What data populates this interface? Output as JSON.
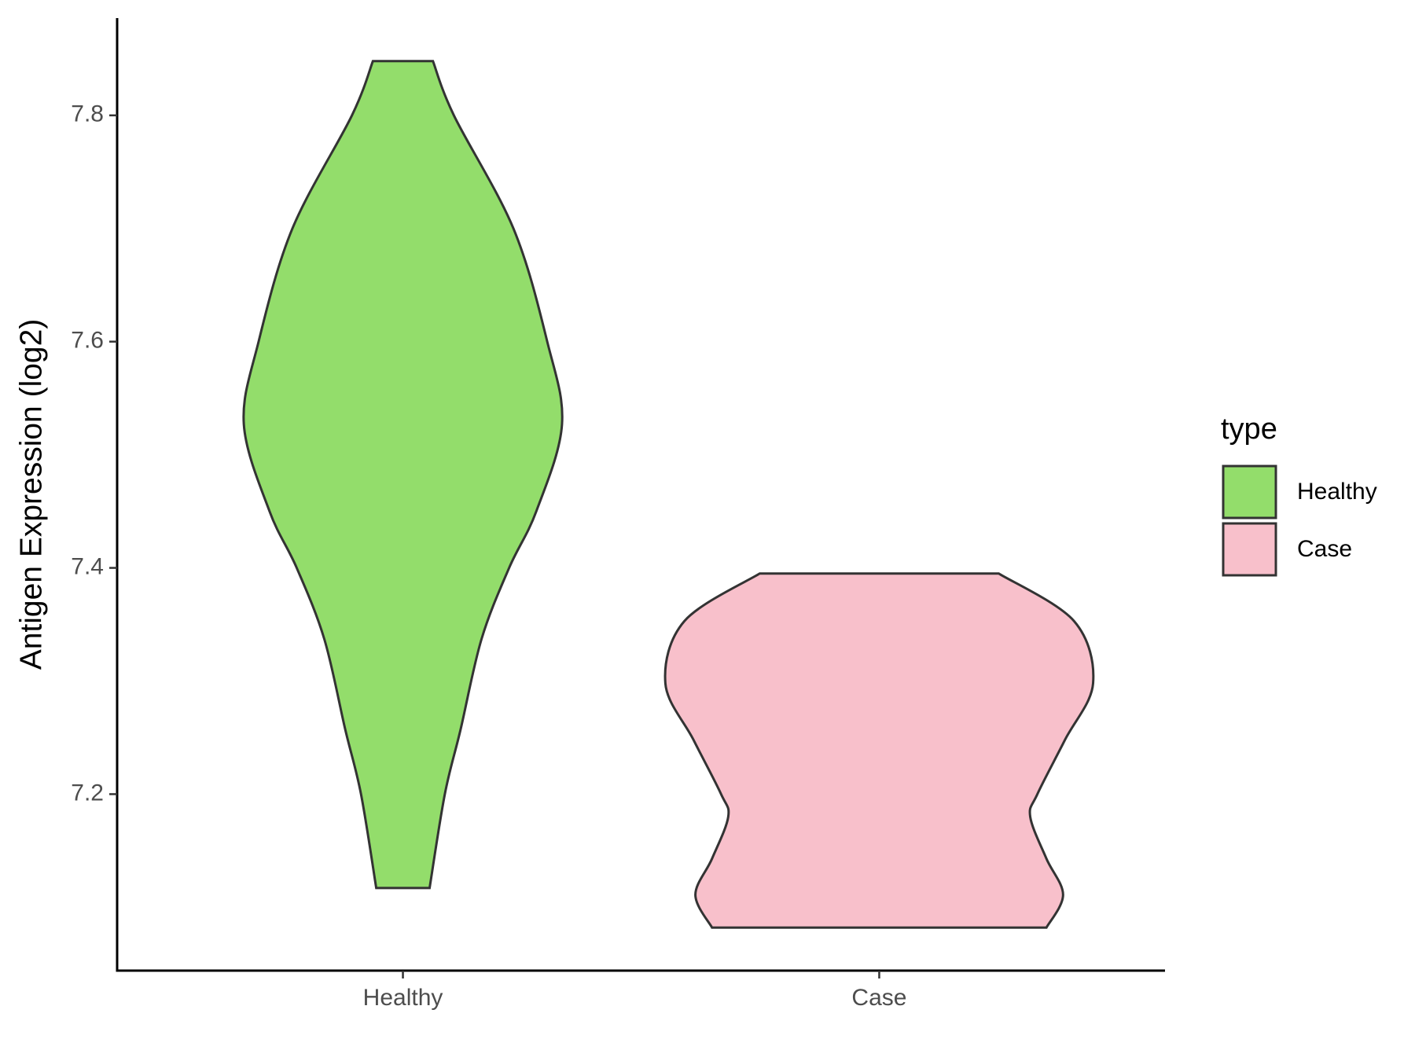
{
  "chart_data": {
    "type": "violin",
    "y_label": "Antigen Expression (log2)",
    "categories": [
      "Healthy",
      "Case"
    ],
    "ylim": [
      7.044,
      7.886
    ],
    "yticks": [
      7.2,
      7.4,
      7.6,
      7.8
    ],
    "legend_title": "type",
    "legend_position": "right",
    "grid": false,
    "series": [
      {
        "name": "Healthy",
        "color": "#93dd6b",
        "y": [
          7.848,
          7.8,
          7.7,
          7.6,
          7.527,
          7.45,
          7.4,
          7.337,
          7.257,
          7.2,
          7.117
        ],
        "half_width": [
          0.063,
          0.107,
          0.232,
          0.303,
          0.334,
          0.28,
          0.223,
          0.165,
          0.121,
          0.088,
          0.056
        ]
      },
      {
        "name": "Case",
        "color": "#f8c0cb",
        "y": [
          7.395,
          7.353,
          7.298,
          7.248,
          7.2,
          7.18,
          7.143,
          7.111,
          7.082
        ],
        "half_width": [
          0.251,
          0.409,
          0.449,
          0.39,
          0.332,
          0.317,
          0.351,
          0.386,
          0.351
        ]
      }
    ]
  }
}
